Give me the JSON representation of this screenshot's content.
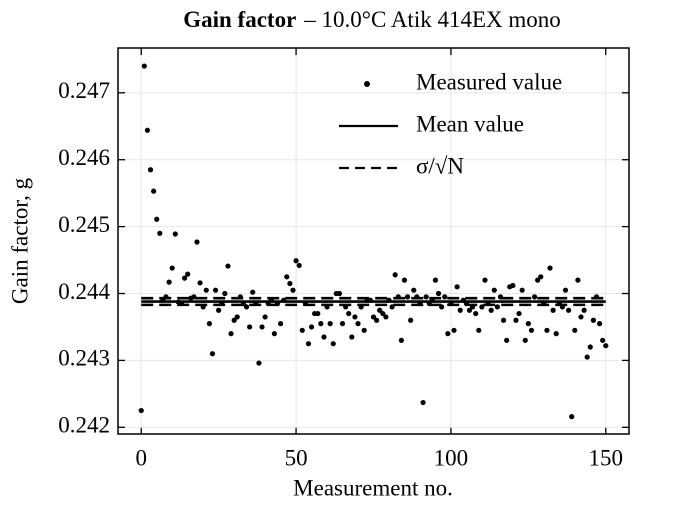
{
  "chart_data": {
    "type": "scatter",
    "title_bold": "Gain factor",
    "title": "– 10.0°C Atik 414EX mono",
    "xlabel": "Measurement no.",
    "ylabel": "Gain factor, g",
    "xlim": [
      -7.5,
      157.5
    ],
    "ylim": [
      0.2419,
      0.24767
    ],
    "xticks": [
      0,
      50,
      100,
      150
    ],
    "yticks": [
      0.242,
      0.243,
      0.244,
      0.245,
      0.246,
      0.247
    ],
    "grid": true,
    "legend": "upper right",
    "series": [
      {
        "name": "Measured value",
        "kind": "points",
        "color": "#000000",
        "x": [
          0,
          1,
          2,
          3,
          4,
          5,
          6,
          7,
          8,
          9,
          10,
          11,
          12,
          13,
          14,
          15,
          16,
          17,
          18,
          19,
          20,
          21,
          22,
          23,
          24,
          25,
          26,
          27,
          28,
          29,
          30,
          31,
          32,
          33,
          34,
          35,
          36,
          37,
          38,
          39,
          40,
          41,
          42,
          43,
          44,
          45,
          46,
          47,
          48,
          49,
          50,
          51,
          52,
          53,
          54,
          55,
          56,
          57,
          58,
          59,
          60,
          61,
          62,
          63,
          64,
          65,
          66,
          67,
          68,
          69,
          70,
          71,
          72,
          73,
          74,
          75,
          76,
          77,
          78,
          79,
          80,
          81,
          82,
          83,
          84,
          85,
          86,
          87,
          88,
          89,
          90,
          91,
          92,
          93,
          94,
          95,
          96,
          97,
          98,
          99,
          100,
          101,
          102,
          103,
          104,
          105,
          106,
          107,
          108,
          109,
          110,
          111,
          112,
          113,
          114,
          115,
          116,
          117,
          118,
          119,
          120,
          121,
          122,
          123,
          124,
          125,
          126,
          127,
          128,
          129,
          130,
          131,
          132,
          133,
          134,
          135,
          136,
          137,
          138,
          139,
          140,
          141,
          142,
          143,
          144,
          145,
          146,
          147,
          148,
          149,
          150
        ],
        "values": [
          0.24225,
          0.2474,
          0.24644,
          0.24585,
          0.24553,
          0.24511,
          0.2449,
          0.2439,
          0.24395,
          0.24417,
          0.24438,
          0.24489,
          0.24387,
          0.24385,
          0.24423,
          0.24429,
          0.24393,
          0.24395,
          0.24477,
          0.24416,
          0.2438,
          0.24405,
          0.24355,
          0.2431,
          0.24405,
          0.24375,
          0.24385,
          0.244,
          0.24441,
          0.2434,
          0.2436,
          0.24365,
          0.24395,
          0.24385,
          0.2438,
          0.2435,
          0.24402,
          0.24385,
          0.24296,
          0.2435,
          0.24365,
          0.24385,
          0.2439,
          0.2434,
          0.24385,
          0.24355,
          0.2439,
          0.24425,
          0.24415,
          0.24405,
          0.24449,
          0.24442,
          0.24345,
          0.24385,
          0.24325,
          0.2435,
          0.2437,
          0.2437,
          0.24355,
          0.24335,
          0.2438,
          0.24355,
          0.24325,
          0.244,
          0.244,
          0.24355,
          0.2438,
          0.2437,
          0.24335,
          0.24365,
          0.24355,
          0.2438,
          0.24345,
          0.2439,
          0.2439,
          0.24365,
          0.2436,
          0.24375,
          0.2437,
          0.24365,
          0.2439,
          0.2438,
          0.24428,
          0.24395,
          0.2433,
          0.2442,
          0.24395,
          0.2436,
          0.24405,
          0.24395,
          0.24385,
          0.24237,
          0.24395,
          0.24385,
          0.2439,
          0.2442,
          0.244,
          0.2438,
          0.24395,
          0.2434,
          0.24385,
          0.24345,
          0.2441,
          0.24375,
          0.2439,
          0.24385,
          0.24375,
          0.2438,
          0.2437,
          0.24345,
          0.2438,
          0.2442,
          0.24385,
          0.24375,
          0.24405,
          0.2438,
          0.24395,
          0.2436,
          0.2433,
          0.2441,
          0.24412,
          0.2436,
          0.2437,
          0.24405,
          0.2433,
          0.24355,
          0.24345,
          0.24395,
          0.2442,
          0.24425,
          0.24385,
          0.24345,
          0.24438,
          0.24375,
          0.2434,
          0.24385,
          0.2438,
          0.24405,
          0.24375,
          0.24216,
          0.24345,
          0.2442,
          0.24365,
          0.24375,
          0.24305,
          0.2432,
          0.2436,
          0.24395,
          0.24355,
          0.2433,
          0.24322
        ]
      },
      {
        "name": "Mean value",
        "kind": "line",
        "style": "solid",
        "color": "#000000",
        "x": [
          0,
          150
        ],
        "values": [
          0.24388,
          0.24388
        ]
      },
      {
        "name": "σ/√N",
        "kind": "line",
        "style": "dashed",
        "color": "#000000",
        "x": [
          0,
          150
        ],
        "values": [
          0.24393,
          0.24393
        ],
        "lower": [
          0.24383,
          0.24383
        ]
      }
    ]
  }
}
